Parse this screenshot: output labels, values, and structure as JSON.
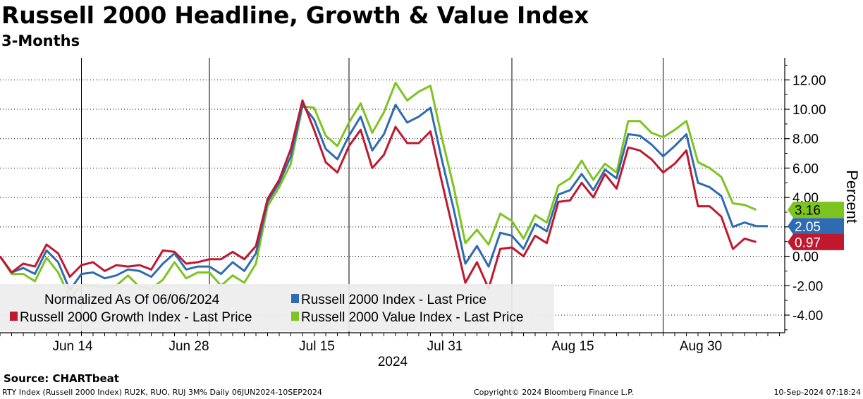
{
  "header": {
    "title": "Russell 2000 Headline, Growth & Value Index",
    "subtitle": "3-Months"
  },
  "footer": {
    "source": "Source: CHARTbeat",
    "description": "RTY Index (Russell 2000 Index) RU2K, RUO, RUJ 3M%  Daily 06JUN2024-10SEP2024",
    "copyright": "Copyright© 2024 Bloomberg Finance L.P.",
    "timestamp": "10-Sep-2024 07:18:24"
  },
  "chart_data": {
    "type": "line",
    "ylabel": "Percent",
    "xlabel_year": "2024",
    "ylim": [
      -5.2,
      13.5
    ],
    "yticks": [
      -4,
      -2,
      0,
      2,
      4,
      6,
      8,
      10,
      12
    ],
    "ytick_labels": [
      "-4.00",
      "-2.00",
      "0.00",
      "2.00",
      "4.00",
      "6.00",
      "8.00",
      "10.00",
      "12.00"
    ],
    "x_count": 68,
    "x_tick_indices": [
      6,
      16,
      27,
      38,
      49,
      60
    ],
    "x_tick_labels": [
      "Jun 14",
      "Jun 28",
      "Jul 15",
      "Jul 31",
      "Aug 15",
      "Aug 30"
    ],
    "x_grid_indices": [
      7,
      18,
      30,
      44,
      57,
      70
    ],
    "legend": {
      "note": "Normalized As Of 06/06/2024",
      "position": "bottom-left"
    },
    "series": [
      {
        "name": "Russell 2000 Index - Last Price",
        "color": "#2e6bb0",
        "last_label": "2.05",
        "values": [
          0,
          -1.1,
          -0.8,
          -1.2,
          0.4,
          -0.4,
          -2.3,
          -1.2,
          -1.1,
          -1.5,
          -1.3,
          -0.9,
          -1.0,
          -1.4,
          -0.5,
          0.2,
          -0.9,
          -0.7,
          -0.7,
          -1.2,
          -0.4,
          -1.0,
          0.2,
          3.7,
          5.0,
          6.8,
          10.3,
          9.3,
          7.3,
          6.6,
          8.2,
          9.5,
          7.2,
          8.3,
          10.3,
          9.1,
          9.5,
          10.1,
          6.5,
          3.2,
          -0.5,
          0.7,
          -0.7,
          1.6,
          1.4,
          0.5,
          2.2,
          1.7,
          4.2,
          4.5,
          5.6,
          4.5,
          5.9,
          5.3,
          8.3,
          8.2,
          7.6,
          6.8,
          7.5,
          8.3,
          5.0,
          4.7,
          4.1,
          2.0,
          2.3,
          2.05,
          2.05
        ]
      },
      {
        "name": "Russell 2000 Growth Index - Last Price",
        "color": "#c0182f",
        "last_label": "0.97",
        "values": [
          0,
          -1.1,
          -0.5,
          -0.7,
          0.8,
          0.2,
          -1.4,
          -0.6,
          -0.4,
          -1.0,
          -0.6,
          -0.7,
          -0.6,
          -0.9,
          0.4,
          0.3,
          -0.5,
          -0.4,
          -0.2,
          -0.2,
          0.3,
          -0.2,
          0.7,
          3.9,
          5.2,
          7.3,
          10.6,
          8.6,
          6.4,
          5.7,
          7.5,
          8.6,
          6.0,
          6.9,
          8.8,
          7.7,
          7.7,
          8.5,
          5.0,
          1.6,
          -1.8,
          -0.4,
          -2.2,
          0.5,
          0.6,
          0.0,
          1.4,
          0.9,
          3.7,
          3.8,
          5.0,
          4.0,
          5.6,
          4.6,
          7.4,
          7.2,
          6.6,
          5.7,
          6.3,
          7.2,
          3.4,
          3.4,
          2.7,
          0.5,
          1.2,
          0.97
        ]
      },
      {
        "name": "Russell 2000 Value Index - Last Price",
        "color": "#7dc41f",
        "last_label": "3.16",
        "values": [
          0,
          -1.2,
          -1.2,
          -1.7,
          -0.1,
          -1.1,
          -2.8,
          -2.0,
          -2.0,
          -2.1,
          -2.0,
          -1.3,
          -2.1,
          -2.2,
          -1.6,
          -0.4,
          -1.5,
          -1.1,
          -1.1,
          -2.0,
          -1.3,
          -1.8,
          -0.5,
          3.4,
          4.7,
          6.3,
          10.2,
          10.1,
          8.2,
          7.5,
          9.1,
          10.4,
          8.4,
          9.8,
          11.8,
          10.6,
          11.2,
          11.6,
          8.0,
          4.7,
          0.9,
          1.8,
          0.8,
          2.9,
          2.4,
          1.2,
          2.8,
          2.3,
          4.8,
          5.3,
          6.5,
          5.2,
          6.3,
          5.7,
          9.2,
          9.2,
          8.4,
          8.1,
          8.6,
          9.2,
          6.4,
          6.0,
          5.4,
          3.6,
          3.5,
          3.16
        ]
      }
    ]
  }
}
